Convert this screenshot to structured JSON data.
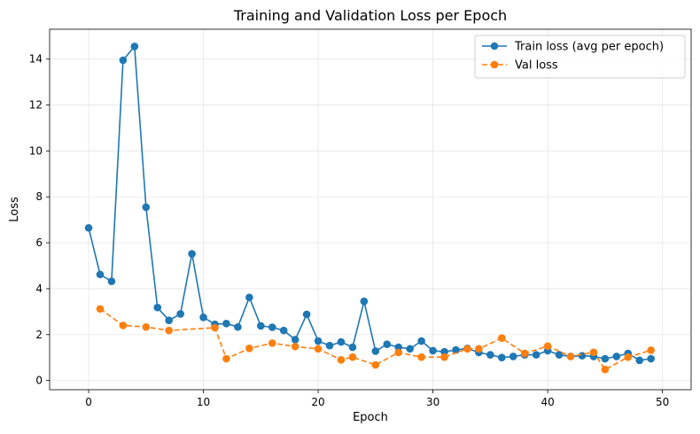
{
  "chart_data": {
    "type": "line",
    "title": "Training and Validation Loss per Epoch",
    "xlabel": "Epoch",
    "ylabel": "Loss",
    "xlim": [
      -3.4,
      52.5
    ],
    "ylim": [
      -0.4,
      15.3
    ],
    "xticks": [
      0,
      10,
      20,
      30,
      40,
      50
    ],
    "yticks": [
      0,
      2,
      4,
      6,
      8,
      10,
      12,
      14
    ],
    "grid": true,
    "legend_position": "upper right",
    "series": [
      {
        "name": "Train loss (avg per epoch)",
        "color": "#1f77b4",
        "linestyle": "solid",
        "marker": "circle",
        "x": [
          0,
          1,
          2,
          3,
          4,
          5,
          6,
          7,
          8,
          9,
          10,
          11,
          12,
          13,
          14,
          15,
          16,
          17,
          18,
          19,
          20,
          21,
          22,
          23,
          24,
          25,
          26,
          27,
          28,
          29,
          30,
          31,
          32,
          33,
          34,
          35,
          36,
          37,
          38,
          39,
          40,
          41,
          42,
          43,
          44,
          45,
          46,
          47,
          48,
          49
        ],
        "values": [
          6.65,
          4.62,
          4.32,
          13.95,
          14.55,
          7.55,
          3.18,
          2.62,
          2.9,
          5.52,
          2.75,
          2.45,
          2.48,
          2.33,
          3.62,
          2.38,
          2.32,
          2.18,
          1.78,
          2.88,
          1.72,
          1.52,
          1.68,
          1.45,
          3.45,
          1.28,
          1.58,
          1.45,
          1.38,
          1.72,
          1.3,
          1.25,
          1.33,
          1.4,
          1.22,
          1.12,
          1.0,
          1.05,
          1.12,
          1.12,
          1.3,
          1.12,
          1.05,
          1.08,
          1.05,
          0.95,
          1.05,
          1.18,
          0.88,
          0.95
        ]
      },
      {
        "name": "Val loss",
        "color": "#ff7f0e",
        "linestyle": "dashed",
        "marker": "circle",
        "x": [
          1,
          3,
          5,
          7,
          11,
          12,
          14,
          16,
          18,
          20,
          22,
          23,
          25,
          27,
          29,
          31,
          33,
          34,
          36,
          38,
          40,
          42,
          44,
          45,
          47,
          49
        ],
        "values": [
          3.12,
          2.4,
          2.33,
          2.18,
          2.3,
          0.95,
          1.4,
          1.63,
          1.48,
          1.38,
          0.9,
          1.02,
          0.68,
          1.22,
          1.02,
          1.02,
          1.38,
          1.38,
          1.85,
          1.18,
          1.5,
          1.05,
          1.23,
          0.48,
          1.02,
          1.32
        ]
      }
    ]
  }
}
